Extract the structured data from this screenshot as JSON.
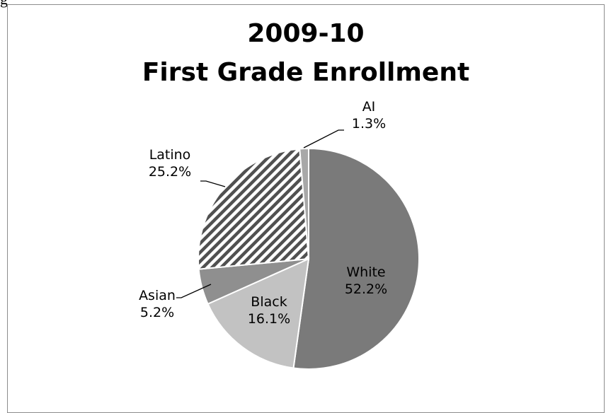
{
  "page_fragment": "g",
  "chart_data": {
    "type": "pie",
    "title_lines": [
      "2009-10",
      "First Grade Enrollment"
    ],
    "slices": [
      {
        "name": "White",
        "pct_label": "52.2%",
        "value": 52.2,
        "fill": "#7a7a7a",
        "pattern": "solid"
      },
      {
        "name": "Black",
        "pct_label": "16.1%",
        "value": 16.1,
        "fill": "#c2c2c2",
        "pattern": "solid"
      },
      {
        "name": "Asian",
        "pct_label": "5.2%",
        "value": 5.2,
        "fill": "#8f8f8f",
        "pattern": "solid"
      },
      {
        "name": "Latino",
        "pct_label": "25.2%",
        "value": 25.2,
        "fill": "#505050",
        "pattern": "diagonal-stripes"
      },
      {
        "name": "AI",
        "pct_label": "1.3%",
        "value": 1.3,
        "fill": "#a8a8a8",
        "pattern": "solid"
      }
    ],
    "start": "12 o'clock",
    "direction": "clockwise",
    "legend": "none",
    "label_placement": "inside for White and Black, outside with leader lines for Asian, Latino, AI"
  }
}
